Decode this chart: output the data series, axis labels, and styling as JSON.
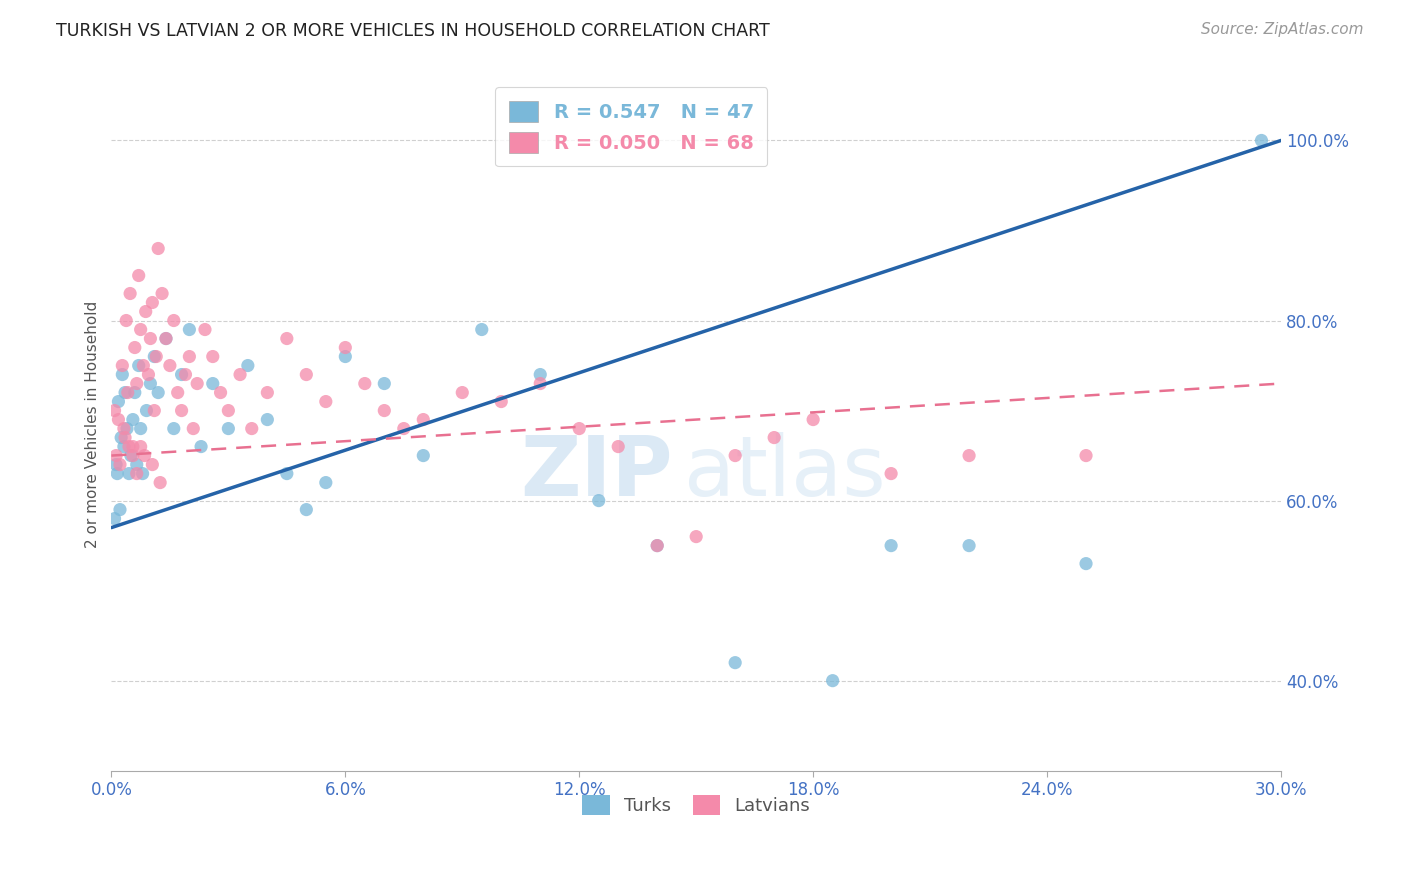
{
  "title": "TURKISH VS LATVIAN 2 OR MORE VEHICLES IN HOUSEHOLD CORRELATION CHART",
  "source": "Source: ZipAtlas.com",
  "ylabel_label": "2 or more Vehicles in Household",
  "x_min": 0.0,
  "x_max": 30.0,
  "y_min": 30.0,
  "y_max": 107.0,
  "y_ticks": [
    40.0,
    60.0,
    80.0,
    100.0
  ],
  "x_ticks": [
    0.0,
    6.0,
    12.0,
    18.0,
    24.0,
    30.0
  ],
  "turks_color": "#7ab8d9",
  "latvians_color": "#f48aaa",
  "turks_line_color": "#2563a8",
  "latvians_line_color": "#e87090",
  "turks_R": 0.547,
  "turks_N": 47,
  "latvians_R": 0.05,
  "latvians_N": 68,
  "turks_line_x0": 0.0,
  "turks_line_y0": 57.0,
  "turks_line_x1": 30.0,
  "turks_line_y1": 100.0,
  "latvians_line_x0": 0.0,
  "latvians_line_y0": 65.0,
  "latvians_line_x1": 30.0,
  "latvians_line_y1": 73.0,
  "turks_x": [
    0.08,
    0.12,
    0.15,
    0.18,
    0.22,
    0.25,
    0.28,
    0.32,
    0.35,
    0.4,
    0.45,
    0.5,
    0.55,
    0.6,
    0.65,
    0.7,
    0.75,
    0.8,
    0.9,
    1.0,
    1.1,
    1.2,
    1.4,
    1.6,
    1.8,
    2.0,
    2.3,
    2.6,
    3.0,
    3.5,
    4.0,
    4.5,
    5.0,
    5.5,
    6.0,
    7.0,
    8.0,
    9.5,
    11.0,
    12.5,
    14.0,
    16.0,
    18.5,
    20.0,
    22.0,
    25.0,
    29.5
  ],
  "turks_y": [
    58.0,
    64.0,
    63.0,
    71.0,
    59.0,
    67.0,
    74.0,
    66.0,
    72.0,
    68.0,
    63.0,
    65.0,
    69.0,
    72.0,
    64.0,
    75.0,
    68.0,
    63.0,
    70.0,
    73.0,
    76.0,
    72.0,
    78.0,
    68.0,
    74.0,
    79.0,
    66.0,
    73.0,
    68.0,
    75.0,
    69.0,
    63.0,
    59.0,
    62.0,
    76.0,
    73.0,
    65.0,
    79.0,
    74.0,
    60.0,
    55.0,
    42.0,
    40.0,
    55.0,
    55.0,
    53.0,
    100.0
  ],
  "latvians_x": [
    0.08,
    0.12,
    0.18,
    0.22,
    0.28,
    0.32,
    0.38,
    0.42,
    0.48,
    0.55,
    0.6,
    0.65,
    0.7,
    0.75,
    0.82,
    0.88,
    0.95,
    1.0,
    1.05,
    1.1,
    1.15,
    1.2,
    1.3,
    1.4,
    1.5,
    1.6,
    1.7,
    1.8,
    1.9,
    2.0,
    2.1,
    2.2,
    2.4,
    2.6,
    2.8,
    3.0,
    3.3,
    3.6,
    4.0,
    4.5,
    5.0,
    5.5,
    6.0,
    6.5,
    7.0,
    7.5,
    8.0,
    9.0,
    10.0,
    11.0,
    12.0,
    13.0,
    14.0,
    15.0,
    16.0,
    17.0,
    18.0,
    20.0,
    22.0,
    25.0,
    0.35,
    0.45,
    0.55,
    0.65,
    0.75,
    0.85,
    1.05,
    1.25
  ],
  "latvians_y": [
    70.0,
    65.0,
    69.0,
    64.0,
    75.0,
    68.0,
    80.0,
    72.0,
    83.0,
    66.0,
    77.0,
    73.0,
    85.0,
    79.0,
    75.0,
    81.0,
    74.0,
    78.0,
    82.0,
    70.0,
    76.0,
    88.0,
    83.0,
    78.0,
    75.0,
    80.0,
    72.0,
    70.0,
    74.0,
    76.0,
    68.0,
    73.0,
    79.0,
    76.0,
    72.0,
    70.0,
    74.0,
    68.0,
    72.0,
    78.0,
    74.0,
    71.0,
    77.0,
    73.0,
    70.0,
    68.0,
    69.0,
    72.0,
    71.0,
    73.0,
    68.0,
    66.0,
    55.0,
    56.0,
    65.0,
    67.0,
    69.0,
    63.0,
    65.0,
    65.0,
    67.0,
    66.0,
    65.0,
    63.0,
    66.0,
    65.0,
    64.0,
    62.0
  ],
  "watermark_zip": "ZIP",
  "watermark_atlas": "atlas",
  "background_color": "#ffffff",
  "grid_color": "#d0d0d0"
}
